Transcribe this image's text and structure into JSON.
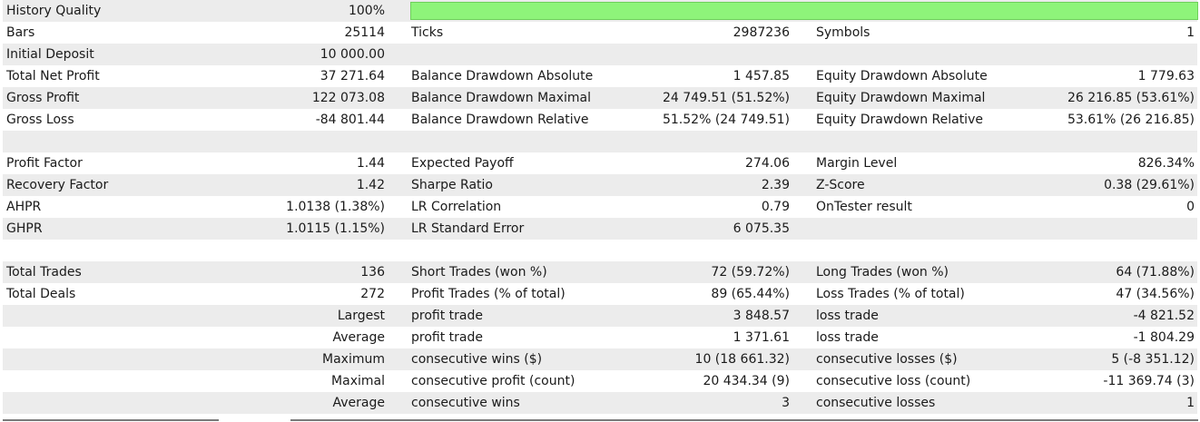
{
  "rows": [
    {
      "shade": true,
      "c1": "History Quality",
      "c2": "100%",
      "bar": true,
      "bar_value": 1.0
    },
    {
      "shade": false,
      "c1": "Bars",
      "c2": "25114",
      "c3": "Ticks",
      "c4": "2987236",
      "c5": "Symbols",
      "c6": "1"
    },
    {
      "shade": true,
      "c1": "Initial Deposit",
      "c2": "10 000.00"
    },
    {
      "shade": false,
      "c1": "Total Net Profit",
      "c2": "37 271.64",
      "c3": "Balance Drawdown Absolute",
      "c4": "1 457.85",
      "c5": "Equity Drawdown Absolute",
      "c6": "1 779.63"
    },
    {
      "shade": true,
      "c1": "Gross Profit",
      "c2": "122 073.08",
      "c3": "Balance Drawdown Maximal",
      "c4": "24 749.51 (51.52%)",
      "c5": "Equity Drawdown Maximal",
      "c6": "26 216.85 (53.61%)"
    },
    {
      "shade": false,
      "c1": "Gross Loss",
      "c2": "-84 801.44",
      "c3": "Balance Drawdown Relative",
      "c4": "51.52% (24 749.51)",
      "c5": "Equity Drawdown Relative",
      "c6": "53.61% (26 216.85)"
    },
    {
      "shade": true
    },
    {
      "shade": false,
      "c1": "Profit Factor",
      "c2": "1.44",
      "c3": "Expected Payoff",
      "c4": "274.06",
      "c5": "Margin Level",
      "c6": "826.34%"
    },
    {
      "shade": true,
      "c1": "Recovery Factor",
      "c2": "1.42",
      "c3": "Sharpe Ratio",
      "c4": "2.39",
      "c5": "Z-Score",
      "c6": "0.38 (29.61%)"
    },
    {
      "shade": false,
      "c1": "AHPR",
      "c2": "1.0138 (1.38%)",
      "c3": "LR Correlation",
      "c4": "0.79",
      "c5": "OnTester result",
      "c6": "0"
    },
    {
      "shade": true,
      "c1": "GHPR",
      "c2": "1.0115 (1.15%)",
      "c3": "LR Standard Error",
      "c4": "6 075.35"
    },
    {
      "shade": false
    },
    {
      "shade": true,
      "c1": "Total Trades",
      "c2": "136",
      "c3": "Short Trades (won %)",
      "c4": "72 (59.72%)",
      "c5": "Long Trades (won %)",
      "c6": "64 (71.88%)"
    },
    {
      "shade": false,
      "c1": "Total Deals",
      "c2": "272",
      "c3": "Profit Trades (% of total)",
      "c4": "89 (65.44%)",
      "c5": "Loss Trades (% of total)",
      "c6": "47 (34.56%)"
    },
    {
      "shade": true,
      "c2": "Largest",
      "c3": "profit trade",
      "c4": "3 848.57",
      "c5": "loss trade",
      "c6": "-4 821.52"
    },
    {
      "shade": false,
      "c2": "Average",
      "c3": "profit trade",
      "c4": "1 371.61",
      "c5": "loss trade",
      "c6": "-1 804.29"
    },
    {
      "shade": true,
      "c2": "Maximum",
      "c3": "consecutive wins ($)",
      "c4": "10 (18 661.32)",
      "c5": "consecutive losses ($)",
      "c6": "5 (-8 351.12)"
    },
    {
      "shade": false,
      "c2": "Maximal",
      "c3": "consecutive profit (count)",
      "c4": "20 434.34 (9)",
      "c5": "consecutive loss (count)",
      "c6": "-11 369.74 (3)"
    },
    {
      "shade": true,
      "c2": "Average",
      "c3": "consecutive wins",
      "c4": "3",
      "c5": "consecutive losses",
      "c6": "1"
    }
  ]
}
